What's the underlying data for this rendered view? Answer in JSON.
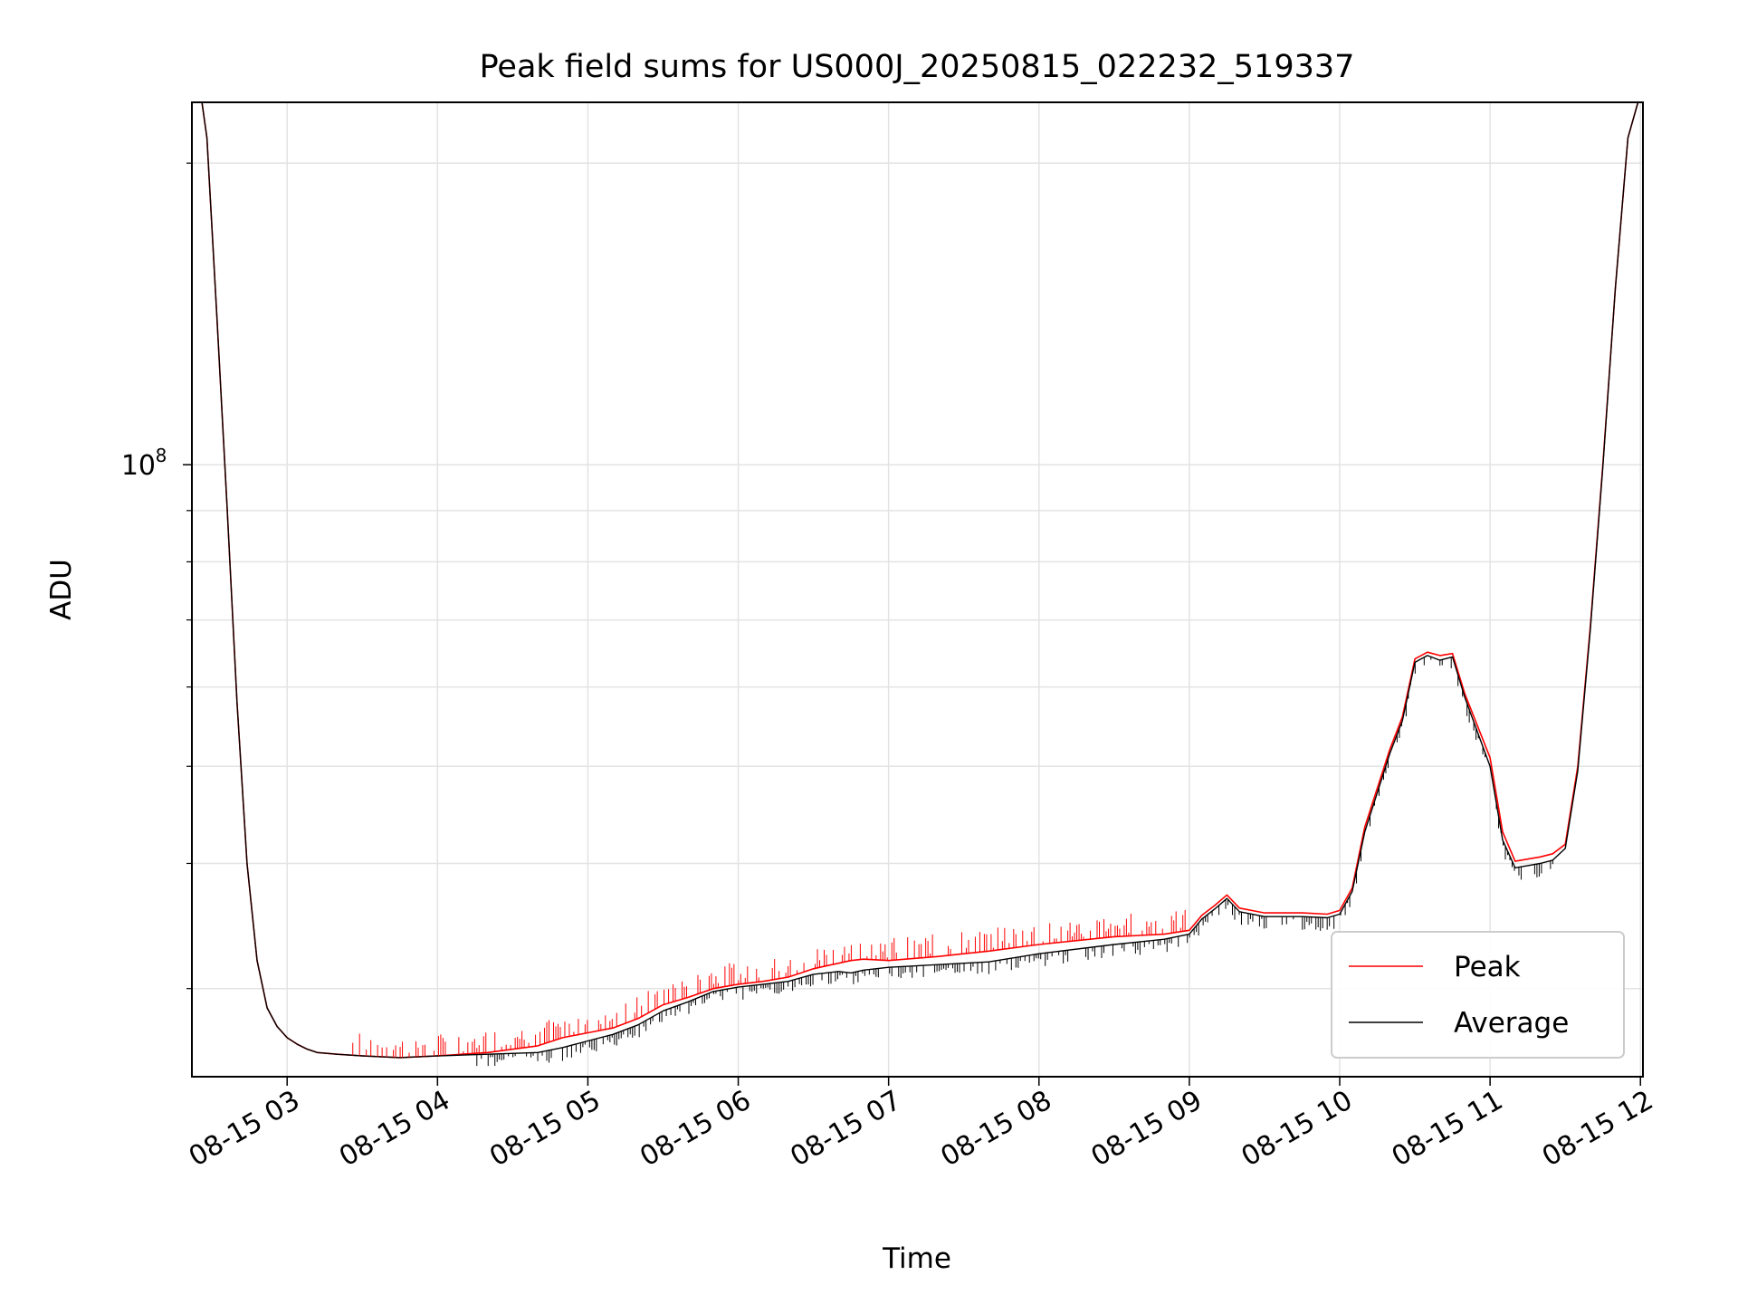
{
  "chart_data": {
    "type": "line",
    "title": "Peak field sums for US000J_20250815_022232_519337",
    "xlabel": "Time",
    "ylabel": "ADU",
    "y_scale": "log",
    "ylim": [
      24500000,
      230000000
    ],
    "xlim": [
      "2025-08-15 02:22",
      "2025-08-15 12:01"
    ],
    "x_tick_labels": [
      "08-15 03",
      "08-15 04",
      "08-15 05",
      "08-15 06",
      "08-15 07",
      "08-15 08",
      "08-15 09",
      "08-15 10",
      "08-15 11",
      "08-15 12"
    ],
    "y_tick_label": {
      "base": "10",
      "exponent": "8"
    },
    "grid": true,
    "legend": {
      "position": "lower right",
      "entries": [
        "Peak",
        "Average"
      ]
    },
    "colors": {
      "Peak": "#ff0000",
      "Average": "#000000"
    },
    "x": [
      "02:24",
      "02:26",
      "02:28",
      "02:32",
      "02:36",
      "02:40",
      "02:44",
      "02:48",
      "02:52",
      "02:56",
      "03:00",
      "03:04",
      "03:08",
      "03:12",
      "03:20",
      "03:30",
      "03:45",
      "04:00",
      "04:20",
      "04:40",
      "04:50",
      "05:00",
      "05:10",
      "05:20",
      "05:30",
      "05:40",
      "05:50",
      "06:00",
      "06:10",
      "06:20",
      "06:30",
      "06:35",
      "06:40",
      "06:45",
      "06:50",
      "07:00",
      "07:20",
      "07:30",
      "07:40",
      "08:00",
      "08:30",
      "08:50",
      "09:00",
      "09:05",
      "09:10",
      "09:15",
      "09:20",
      "09:30",
      "09:45",
      "09:55",
      "10:00",
      "10:05",
      "10:10",
      "10:20",
      "10:25",
      "10:30",
      "10:35",
      "10:40",
      "10:45",
      "10:50",
      "11:00",
      "11:05",
      "11:10",
      "11:15",
      "11:20",
      "11:25",
      "11:30",
      "11:35",
      "11:40",
      "11:45",
      "11:50",
      "11:55",
      "11:59"
    ],
    "series": [
      {
        "name": "Peak",
        "values": [
          230000000,
          230000000,
          212000000,
          140000000,
          91000000,
          58000000,
          40000000,
          32000000,
          28700000,
          27500000,
          26800000,
          26400000,
          26100000,
          25900000,
          25800000,
          25700000,
          25600000,
          25700000,
          25900000,
          26300000,
          26800000,
          27100000,
          27400000,
          28000000,
          28900000,
          29400000,
          30000000,
          30300000,
          30500000,
          30800000,
          31400000,
          31600000,
          31800000,
          32000000,
          32100000,
          32000000,
          32300000,
          32500000,
          32700000,
          33200000,
          33800000,
          34000000,
          34300000,
          35500000,
          36300000,
          37200000,
          36100000,
          35700000,
          35700000,
          35600000,
          35900000,
          37800000,
          43500000,
          52000000,
          56000000,
          64000000,
          65000000,
          64500000,
          64800000,
          59000000,
          51000000,
          43000000,
          40200000,
          40400000,
          40600000,
          40900000,
          41800000,
          50000000,
          69000000,
          100000000,
          150000000,
          212000000,
          230000000
        ]
      },
      {
        "name": "Average",
        "values": [
          230000000,
          230000000,
          212000000,
          140000000,
          91000000,
          58000000,
          40000000,
          32000000,
          28700000,
          27500000,
          26800000,
          26400000,
          26100000,
          25900000,
          25800000,
          25700000,
          25600000,
          25700000,
          25800000,
          25900000,
          26200000,
          26600000,
          27000000,
          27600000,
          28500000,
          29100000,
          29800000,
          30100000,
          30300000,
          30500000,
          31000000,
          31100000,
          31200000,
          31100000,
          31300000,
          31500000,
          31700000,
          31800000,
          31900000,
          32500000,
          33200000,
          33600000,
          34000000,
          35200000,
          36000000,
          36900000,
          35800000,
          35400000,
          35400000,
          35300000,
          35600000,
          37500000,
          43000000,
          51500000,
          55500000,
          63500000,
          64500000,
          63800000,
          64300000,
          58500000,
          50000000,
          42200000,
          39600000,
          39800000,
          40000000,
          40300000,
          41400000,
          49500000,
          68500000,
          99500000,
          150000000,
          212000000,
          230000000
        ]
      }
    ]
  }
}
